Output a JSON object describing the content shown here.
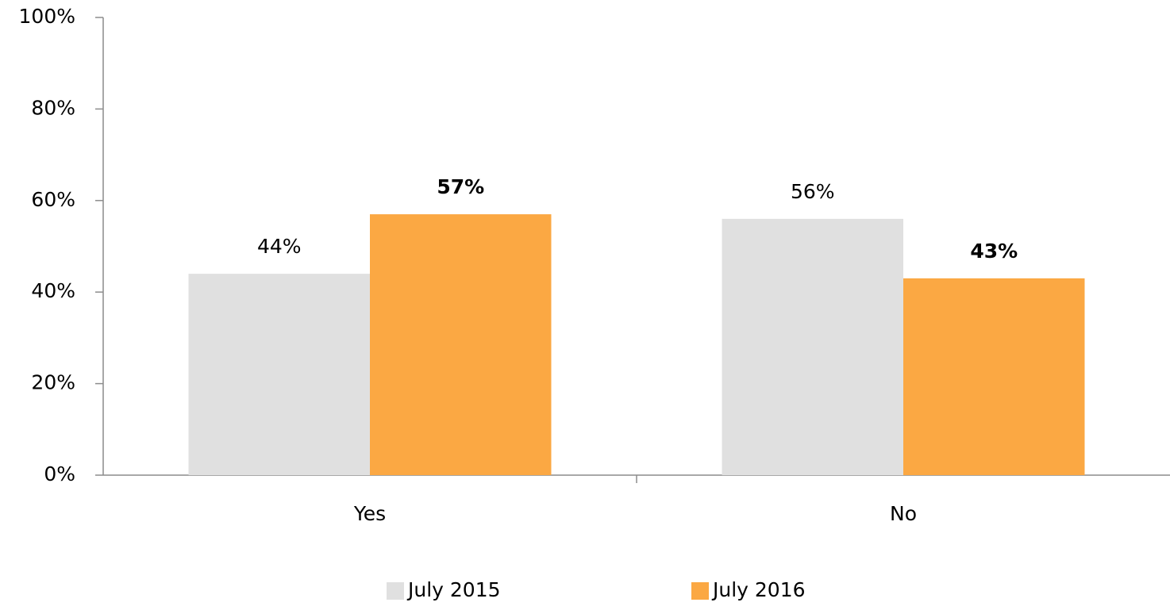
{
  "chart_data": {
    "type": "bar",
    "categories": [
      "Yes",
      "No"
    ],
    "series": [
      {
        "name": "July 2015",
        "color": "#e0e0e0",
        "values": [
          44,
          56
        ],
        "value_labels": [
          "44%",
          "56%"
        ],
        "bold_labels": false
      },
      {
        "name": "July 2016",
        "color": "#fba843",
        "values": [
          57,
          43
        ],
        "value_labels": [
          "57%",
          "43%"
        ],
        "bold_labels": true
      }
    ],
    "ylim": [
      0,
      100
    ],
    "yticks": [
      {
        "value": 0,
        "label": "0%"
      },
      {
        "value": 20,
        "label": "20%"
      },
      {
        "value": 40,
        "label": "40%"
      },
      {
        "value": 60,
        "label": "60%"
      },
      {
        "value": 80,
        "label": "80%"
      },
      {
        "value": 100,
        "label": "100%"
      }
    ],
    "grid": false,
    "legend": "bottom"
  }
}
